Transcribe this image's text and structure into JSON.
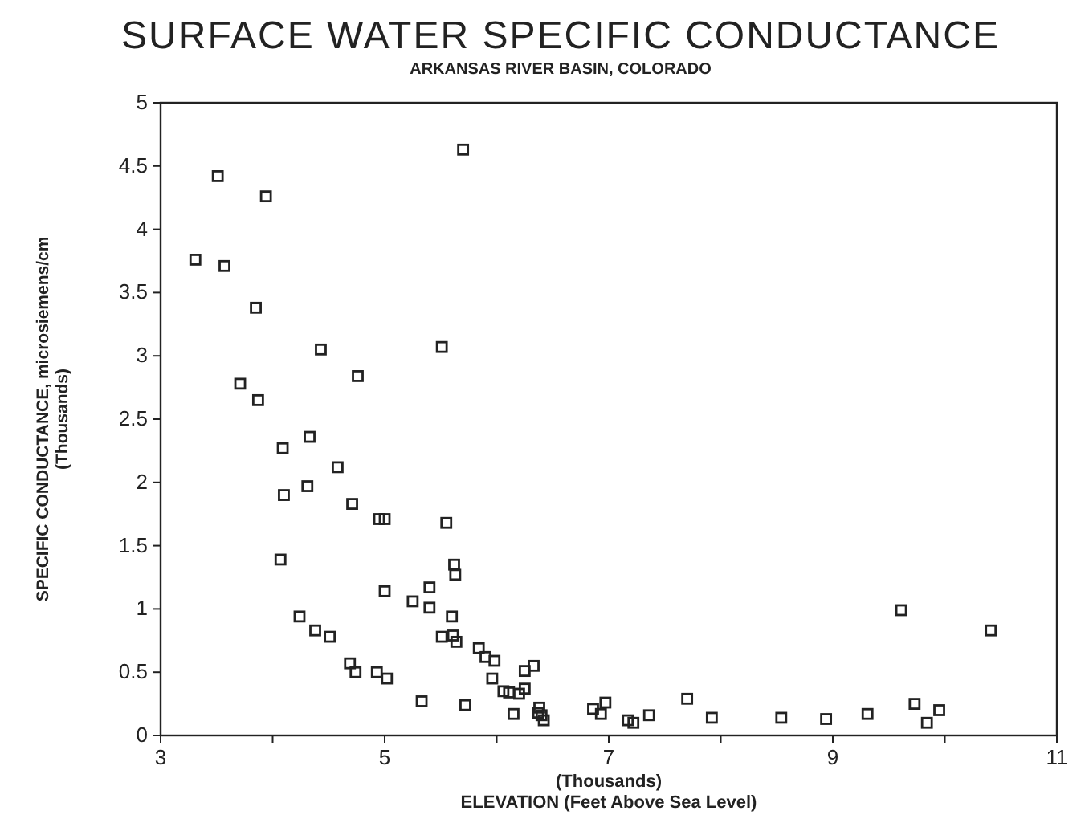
{
  "chart_data": {
    "type": "scatter",
    "title": "SURFACE WATER SPECIFIC CONDUCTANCE",
    "subtitle": "ARKANSAS RIVER BASIN, COLORADO",
    "xlabel": "(Thousands)\nELEVATION  (Feet Above Sea Level)",
    "ylabel": "SPECIFIC CONDUCTANCE, microsiemens/cm\n(Thousands)",
    "xlim": [
      3,
      11
    ],
    "xticks": [
      3,
      {
        "value": 4,
        "label": null
      },
      5,
      {
        "value": 6,
        "label": null
      },
      7,
      {
        "value": 8,
        "label": null
      },
      9,
      {
        "value": 10,
        "label": null
      },
      11
    ],
    "ylim": [
      0,
      5
    ],
    "yticks": [
      0,
      0.5,
      1,
      1.5,
      2,
      2.5,
      3,
      3.5,
      4,
      4.5,
      5
    ],
    "grid": false,
    "marker": "square",
    "series": [
      {
        "color": "#222222",
        "x": [
          3.31,
          3.51,
          3.57,
          3.94,
          3.85,
          3.71,
          3.87,
          4.43,
          4.76,
          5.7,
          5.51,
          4.09,
          4.33,
          4.1,
          4.31,
          4.58,
          4.71,
          4.95,
          5.0,
          5.55,
          4.07,
          5.62,
          5.63,
          5.0,
          5.4,
          5.25,
          5.4,
          5.6,
          4.24,
          4.38,
          4.51,
          5.51,
          5.61,
          5.64,
          5.84,
          5.9,
          5.98,
          4.69,
          4.74,
          4.93,
          5.02,
          5.96,
          6.33,
          6.25,
          6.06,
          6.11,
          6.2,
          6.25,
          6.15,
          5.33,
          5.72,
          6.38,
          6.4,
          6.42,
          6.37,
          6.86,
          6.97,
          6.93,
          7.17,
          7.22,
          7.36,
          7.7,
          7.92,
          8.54,
          8.94,
          9.31,
          9.61,
          9.73,
          9.84,
          9.95,
          10.41
        ],
        "values": [
          3.76,
          4.42,
          3.71,
          4.26,
          3.38,
          2.78,
          2.65,
          3.05,
          2.84,
          4.63,
          3.07,
          2.27,
          2.36,
          1.9,
          1.97,
          2.12,
          1.83,
          1.71,
          1.71,
          1.68,
          1.39,
          1.35,
          1.27,
          1.14,
          1.17,
          1.06,
          1.01,
          0.94,
          0.94,
          0.83,
          0.78,
          0.78,
          0.79,
          0.74,
          0.69,
          0.62,
          0.59,
          0.57,
          0.5,
          0.5,
          0.45,
          0.45,
          0.55,
          0.51,
          0.35,
          0.34,
          0.33,
          0.37,
          0.17,
          0.27,
          0.24,
          0.22,
          0.16,
          0.12,
          0.18,
          0.21,
          0.26,
          0.17,
          0.12,
          0.1,
          0.16,
          0.29,
          0.14,
          0.14,
          0.13,
          0.17,
          0.99,
          0.25,
          0.1,
          0.2,
          0.83
        ]
      }
    ]
  }
}
